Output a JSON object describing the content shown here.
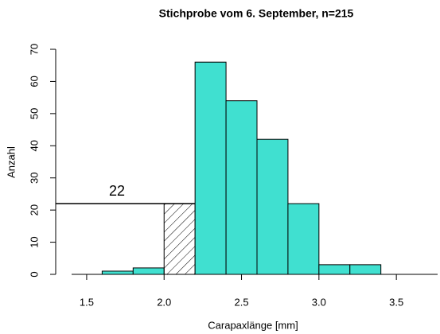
{
  "chart_data": {
    "type": "histogram",
    "title": "Stichprobe vom 6. September, n=215",
    "xlabel": "Carapaxlänge [mm]",
    "ylabel": "Anzahl",
    "bins": [
      1.6,
      1.8,
      2.0,
      2.2,
      2.4,
      2.6,
      2.8,
      3.0,
      3.2,
      3.4
    ],
    "values": [
      1,
      2,
      22,
      66,
      54,
      42,
      22,
      3,
      3
    ],
    "color": "#40e0d0",
    "hatched": [
      2
    ],
    "hline": {
      "y": 22
    },
    "xlim": [
      1.3,
      3.77
    ],
    "ylim": [
      0,
      70
    ],
    "xticks": [
      1.5,
      {
        "value": 2,
        "label": "2.0"
      },
      2.5,
      {
        "value": 3,
        "label": "3.0"
      },
      3.5
    ],
    "yticks": [
      0,
      10,
      20,
      30,
      40,
      50,
      60,
      70
    ]
  }
}
